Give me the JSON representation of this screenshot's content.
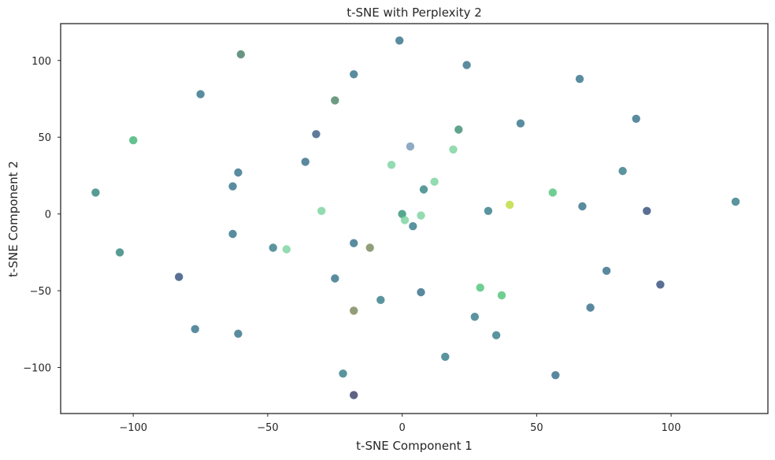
{
  "chart_data": {
    "type": "scatter",
    "title": "t-SNE with Perplexity 2",
    "xlabel": "t-SNE Component 1",
    "ylabel": "t-SNE Component 2",
    "xlim": [
      -127,
      136
    ],
    "ylim": [
      -130,
      124
    ],
    "xticks": [
      -100,
      -50,
      0,
      50,
      100
    ],
    "yticks": [
      -100,
      -50,
      0,
      50,
      100
    ],
    "tick_labels_x": [
      "−100",
      "−50",
      "0",
      "50",
      "100"
    ],
    "tick_labels_y": [
      "−100",
      "−50",
      "0",
      "50",
      "100"
    ],
    "grid": false,
    "legend": "none",
    "marker_alpha": 0.75,
    "points": [
      {
        "x": -1,
        "y": 113,
        "color": "#23657f"
      },
      {
        "x": -60,
        "y": 104,
        "color": "#35735a"
      },
      {
        "x": 24,
        "y": 97,
        "color": "#23657f"
      },
      {
        "x": -18,
        "y": 91,
        "color": "#23657f"
      },
      {
        "x": 66,
        "y": 88,
        "color": "#23657f"
      },
      {
        "x": -75,
        "y": 78,
        "color": "#23657f"
      },
      {
        "x": -25,
        "y": 74,
        "color": "#3c7a56"
      },
      {
        "x": 87,
        "y": 62,
        "color": "#23657f"
      },
      {
        "x": 44,
        "y": 59,
        "color": "#23657f"
      },
      {
        "x": 21,
        "y": 55,
        "color": "#2e8467"
      },
      {
        "x": -32,
        "y": 52,
        "color": "#2a4f7a"
      },
      {
        "x": -100,
        "y": 48,
        "color": "#2fae6a"
      },
      {
        "x": 3,
        "y": 44,
        "color": "#6a8fb0"
      },
      {
        "x": 19,
        "y": 42,
        "color": "#6fcf97"
      },
      {
        "x": -36,
        "y": 34,
        "color": "#23607f"
      },
      {
        "x": -4,
        "y": 32,
        "color": "#6fcf97"
      },
      {
        "x": -61,
        "y": 27,
        "color": "#23657f"
      },
      {
        "x": 82,
        "y": 28,
        "color": "#23707f"
      },
      {
        "x": 12,
        "y": 21,
        "color": "#6fcf97"
      },
      {
        "x": -63,
        "y": 18,
        "color": "#23657f"
      },
      {
        "x": 8,
        "y": 16,
        "color": "#1f7a78"
      },
      {
        "x": -114,
        "y": 14,
        "color": "#1f7a70"
      },
      {
        "x": 56,
        "y": 14,
        "color": "#3fbf6e"
      },
      {
        "x": 124,
        "y": 8,
        "color": "#23707f"
      },
      {
        "x": 40,
        "y": 6,
        "color": "#b5d92a"
      },
      {
        "x": 67,
        "y": 5,
        "color": "#23657f"
      },
      {
        "x": 91,
        "y": 2,
        "color": "#233f70"
      },
      {
        "x": 32,
        "y": 2,
        "color": "#23707f"
      },
      {
        "x": -30,
        "y": 2,
        "color": "#6fcf97"
      },
      {
        "x": 0,
        "y": 0,
        "color": "#1f8a6a"
      },
      {
        "x": 7,
        "y": -1,
        "color": "#6fcf97"
      },
      {
        "x": 1,
        "y": -4,
        "color": "#6fcf97"
      },
      {
        "x": 4,
        "y": -8,
        "color": "#23707f"
      },
      {
        "x": -63,
        "y": -13,
        "color": "#23657f"
      },
      {
        "x": -18,
        "y": -19,
        "color": "#23657f"
      },
      {
        "x": -12,
        "y": -22,
        "color": "#6e7e4c"
      },
      {
        "x": -48,
        "y": -22,
        "color": "#23707f"
      },
      {
        "x": -43,
        "y": -23,
        "color": "#6fcf97"
      },
      {
        "x": -105,
        "y": -25,
        "color": "#1f7a70"
      },
      {
        "x": -83,
        "y": -41,
        "color": "#233f70"
      },
      {
        "x": 76,
        "y": -37,
        "color": "#23607f"
      },
      {
        "x": -25,
        "y": -42,
        "color": "#23657f"
      },
      {
        "x": 96,
        "y": -46,
        "color": "#233f70"
      },
      {
        "x": 29,
        "y": -48,
        "color": "#3fbf6e"
      },
      {
        "x": 7,
        "y": -51,
        "color": "#23607f"
      },
      {
        "x": 37,
        "y": -53,
        "color": "#3fbf6e"
      },
      {
        "x": -8,
        "y": -56,
        "color": "#23707f"
      },
      {
        "x": 70,
        "y": -61,
        "color": "#23607f"
      },
      {
        "x": -18,
        "y": -63,
        "color": "#6e7e4c"
      },
      {
        "x": 27,
        "y": -67,
        "color": "#23707f"
      },
      {
        "x": -77,
        "y": -75,
        "color": "#23657f"
      },
      {
        "x": -61,
        "y": -78,
        "color": "#23657f"
      },
      {
        "x": 35,
        "y": -79,
        "color": "#23707f"
      },
      {
        "x": 16,
        "y": -93,
        "color": "#23707f"
      },
      {
        "x": -22,
        "y": -104,
        "color": "#23707f"
      },
      {
        "x": 57,
        "y": -105,
        "color": "#23607f"
      },
      {
        "x": -18,
        "y": -118,
        "color": "#2a2f5a"
      }
    ]
  }
}
